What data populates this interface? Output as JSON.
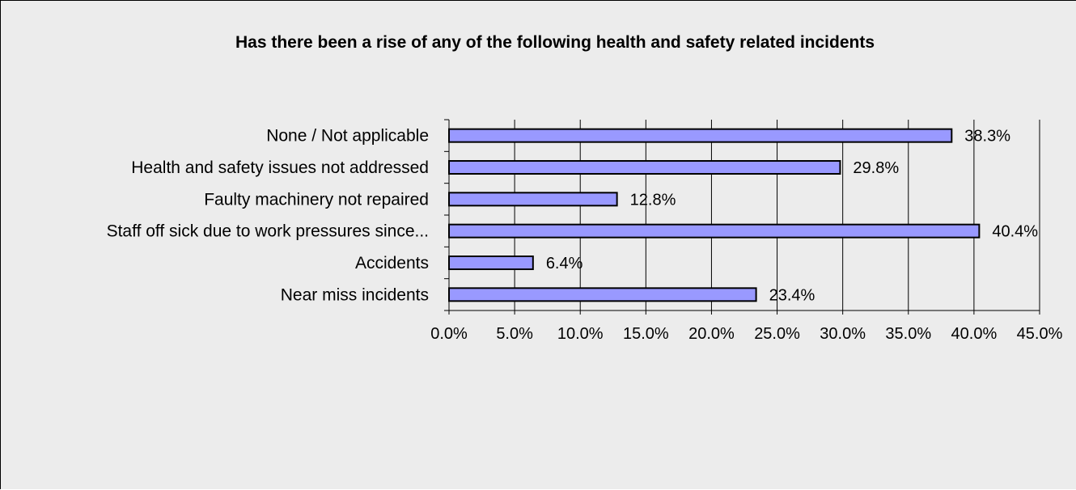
{
  "chart_data": {
    "type": "bar",
    "orientation": "horizontal",
    "title": "Has there been a rise of any of the following health and safety related incidents",
    "categories": [
      "None / Not applicable",
      "Health and safety issues not addressed",
      "Faulty machinery not repaired",
      "Staff off sick due to work pressures since...",
      "Accidents",
      "Near miss incidents"
    ],
    "values": [
      38.3,
      29.8,
      12.8,
      40.4,
      6.4,
      23.4
    ],
    "data_labels": [
      "38.3%",
      "29.8%",
      "12.8%",
      "40.4%",
      "6.4%",
      "23.4%"
    ],
    "x_ticks": [
      "0.0%",
      "5.0%",
      "10.0%",
      "15.0%",
      "20.0%",
      "25.0%",
      "30.0%",
      "35.0%",
      "40.0%",
      "45.0%"
    ],
    "xlim": [
      0,
      45
    ],
    "grid": "vertical",
    "legend": "none",
    "colors": {
      "bar_fill": "#9999ff",
      "bar_stroke": "#000000",
      "plot_background": "#ececec",
      "gridline": "#000000"
    }
  }
}
